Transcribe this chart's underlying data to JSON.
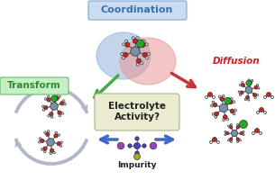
{
  "bg_color": "#ffffff",
  "labels": {
    "coordination": "Coordination",
    "transform": "Transform",
    "diffusion": "Diffusion",
    "electrolyte": "Electrolyte\nActivity?",
    "impurity": "Impurity"
  },
  "label_colors": {
    "coordination": "#3a6faa",
    "transform": "#2e8b2e",
    "diffusion": "#cc2222",
    "electrolyte": "#222222",
    "impurity": "#222222"
  },
  "atom_colors": {
    "Cr": "#7a8fa8",
    "O": "#cc2222",
    "H": "#e8e8e8",
    "Cl": "#22aa22",
    "purple": "#9944bb",
    "yellow": "#aaaa22",
    "blue_ion": "#4444bb"
  },
  "arrow_colors": {
    "green": "#44aa44",
    "red": "#cc3333",
    "blue": "#4466cc",
    "gray": "#b0b8c8"
  },
  "figsize": [
    3.05,
    2.0
  ],
  "dpi": 100
}
